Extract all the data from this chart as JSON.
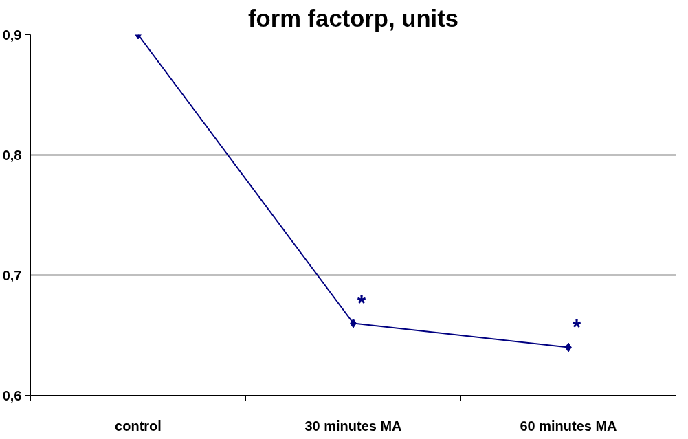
{
  "chart_data": {
    "type": "line",
    "title": "form factorp, units",
    "categories": [
      "control",
      "30 minutes MA",
      "60 minutes MA"
    ],
    "series": [
      {
        "color": "#000080",
        "values": [
          0.9,
          0.66,
          0.64
        ]
      }
    ],
    "ylim": [
      0.6,
      0.9
    ],
    "yticks": [
      {
        "value": 0.6,
        "label": "0,6"
      },
      {
        "value": 0.7,
        "label": "0,7"
      },
      {
        "value": 0.8,
        "label": "0,8"
      },
      {
        "value": 0.9,
        "label": "0,9"
      }
    ],
    "grid": "y",
    "marker": "diamond",
    "line_style": "solid",
    "annotations": [
      {
        "text": "*",
        "x": "30 minutes MA",
        "y": 0.66
      },
      {
        "text": "*",
        "x": "60 minutes MA",
        "y": 0.64
      }
    ]
  }
}
